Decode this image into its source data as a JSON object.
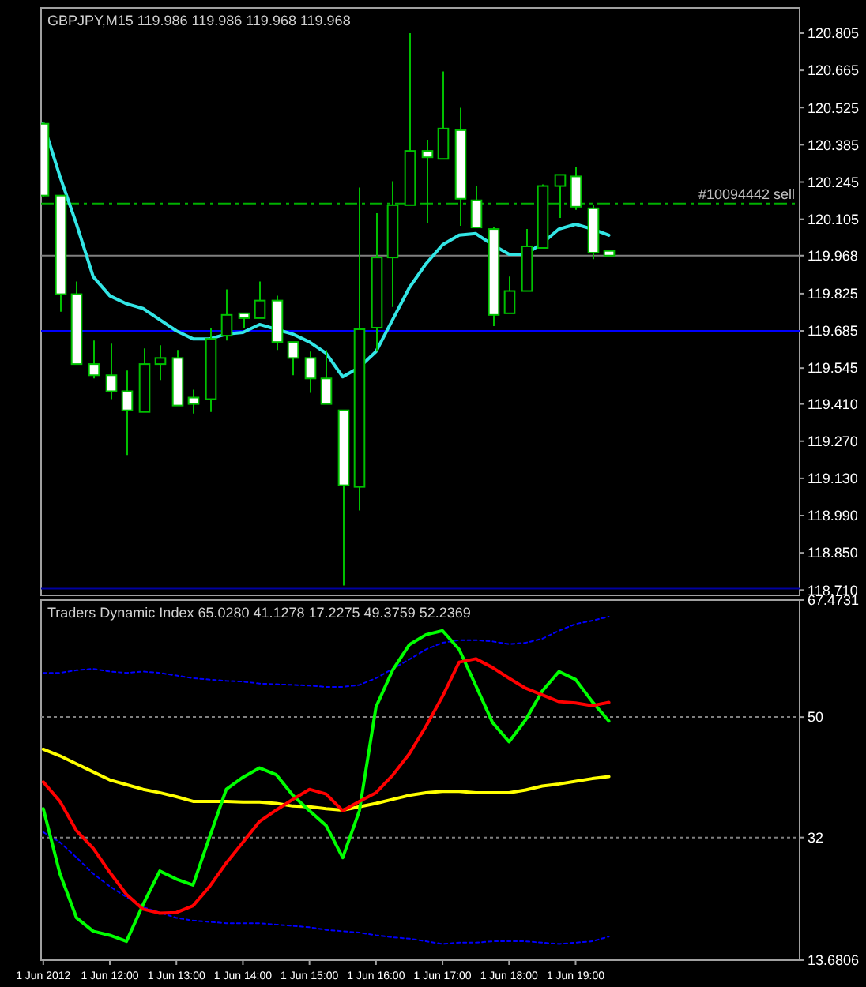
{
  "chart_data": [
    {
      "type": "candlestick",
      "title": "GBPJPY,M15  119.986 119.986 119.968 119.968",
      "x": [
        "2012-06-01T11:00",
        "2012-06-01T11:15",
        "2012-06-01T11:30",
        "2012-06-01T11:45",
        "2012-06-01T12:00",
        "2012-06-01T12:15",
        "2012-06-01T12:30",
        "2012-06-01T12:45",
        "2012-06-01T13:00",
        "2012-06-01T13:15",
        "2012-06-01T13:30",
        "2012-06-01T13:45",
        "2012-06-01T14:00",
        "2012-06-01T14:15",
        "2012-06-01T14:30",
        "2012-06-01T14:45",
        "2012-06-01T15:00",
        "2012-06-01T15:15",
        "2012-06-01T15:30",
        "2012-06-01T15:45",
        "2012-06-01T16:00",
        "2012-06-01T16:15",
        "2012-06-01T16:30",
        "2012-06-01T16:45",
        "2012-06-01T17:00",
        "2012-06-01T17:15",
        "2012-06-01T17:30",
        "2012-06-01T17:45",
        "2012-06-01T18:00",
        "2012-06-01T18:15",
        "2012-06-01T18:30",
        "2012-06-01T18:45",
        "2012-06-01T19:00",
        "2012-06-01T19:15",
        "2012-06-01T19:30"
      ],
      "ohlc": [
        [
          120.464,
          120.47,
          120.19,
          120.194
        ],
        [
          120.194,
          120.194,
          119.757,
          119.823
        ],
        [
          119.823,
          119.871,
          119.56,
          119.56
        ],
        [
          119.56,
          119.649,
          119.506,
          119.518
        ],
        [
          119.518,
          119.637,
          119.428,
          119.458
        ],
        [
          119.458,
          119.536,
          119.218,
          119.386
        ],
        [
          119.38,
          119.619,
          119.38,
          119.56
        ],
        [
          119.56,
          119.631,
          119.5,
          119.583
        ],
        [
          119.583,
          119.613,
          119.404,
          119.404
        ],
        [
          119.434,
          119.464,
          119.374,
          119.41
        ],
        [
          119.428,
          119.697,
          119.38,
          119.655
        ],
        [
          119.667,
          119.841,
          119.649,
          119.745
        ],
        [
          119.751,
          119.751,
          119.697,
          119.733
        ],
        [
          119.733,
          119.871,
          119.733,
          119.799
        ],
        [
          119.799,
          119.817,
          119.613,
          119.643
        ],
        [
          119.643,
          119.643,
          119.518,
          119.583
        ],
        [
          119.583,
          119.607,
          119.452,
          119.506
        ],
        [
          119.506,
          119.613,
          119.41,
          119.41
        ],
        [
          119.386,
          119.386,
          118.727,
          119.104
        ],
        [
          119.098,
          120.224,
          119.009,
          119.691
        ],
        [
          119.697,
          120.128,
          119.607,
          119.961
        ],
        [
          119.961,
          120.248,
          119.775,
          120.158
        ],
        [
          120.158,
          120.805,
          120.158,
          120.362
        ],
        [
          120.362,
          120.404,
          120.092,
          120.338
        ],
        [
          120.332,
          120.661,
          120.332,
          120.446
        ],
        [
          120.44,
          120.524,
          120.08,
          120.182
        ],
        [
          120.176,
          120.23,
          120.074,
          120.074
        ],
        [
          120.068,
          120.074,
          119.703,
          119.745
        ],
        [
          119.751,
          119.889,
          119.751,
          119.835
        ],
        [
          119.835,
          120.068,
          119.835,
          120.003
        ],
        [
          119.997,
          120.236,
          119.997,
          120.23
        ],
        [
          120.23,
          120.272,
          120.11,
          120.272
        ],
        [
          120.266,
          120.302,
          120.14,
          120.152
        ],
        [
          120.146,
          120.158,
          119.955,
          119.979
        ],
        [
          119.986,
          119.986,
          119.968,
          119.968
        ]
      ],
      "series": [
        {
          "type": "line",
          "color": "#33e6e6",
          "values": [
            120.464,
            120.266,
            120.086,
            119.889,
            119.817,
            119.787,
            119.769,
            119.727,
            119.685,
            119.655,
            119.655,
            119.673,
            119.679,
            119.709,
            119.691,
            119.673,
            119.643,
            119.601,
            119.512,
            119.548,
            119.607,
            119.727,
            119.847,
            119.937,
            120.009,
            120.045,
            120.051,
            120.009,
            119.973,
            119.973,
            120.015,
            120.068,
            120.086,
            120.068,
            120.045
          ]
        }
      ],
      "ref_lines": [
        {
          "axis": "y",
          "value": 120.164,
          "label": "#10094442 sell",
          "color": "#00b000",
          "line_style": "dashed"
        },
        {
          "axis": "y",
          "value": 119.968,
          "color": "#808080"
        },
        {
          "axis": "y",
          "value": 119.685,
          "color": "#0000ff"
        },
        {
          "axis": "y",
          "value": 118.715,
          "color": "#0000a0"
        }
      ],
      "xlim": [
        "2012-06-01T10:58",
        "2012-06-01T22:22"
      ],
      "ylim": [
        118.69,
        120.9
      ],
      "yticks": [
        120.805,
        120.665,
        120.525,
        120.385,
        120.245,
        120.105,
        119.968,
        119.825,
        119.685,
        119.545,
        {
          "value": 119.41,
          "label": "119.410"
        },
        {
          "value": 119.27,
          "label": "119.270"
        },
        {
          "value": 119.13,
          "label": "119.130"
        },
        {
          "value": 118.99,
          "label": "118.990"
        },
        {
          "value": 118.85,
          "label": "118.850"
        },
        {
          "value": 118.71,
          "label": "118.710"
        }
      ],
      "tick_labels": "y"
    },
    {
      "type": "line",
      "title": "Traders Dynamic Index 65.0280 41.1278 17.2275 49.3759 52.2369",
      "x": [
        "2012-06-01T11:00",
        "2012-06-01T11:15",
        "2012-06-01T11:30",
        "2012-06-01T11:45",
        "2012-06-01T12:00",
        "2012-06-01T12:15",
        "2012-06-01T12:30",
        "2012-06-01T12:45",
        "2012-06-01T13:00",
        "2012-06-01T13:15",
        "2012-06-01T13:30",
        "2012-06-01T13:45",
        "2012-06-01T14:00",
        "2012-06-01T14:15",
        "2012-06-01T14:30",
        "2012-06-01T14:45",
        "2012-06-01T15:00",
        "2012-06-01T15:15",
        "2012-06-01T15:30",
        "2012-06-01T15:45",
        "2012-06-01T16:00",
        "2012-06-01T16:15",
        "2012-06-01T16:30",
        "2012-06-01T16:45",
        "2012-06-01T17:00",
        "2012-06-01T17:15",
        "2012-06-01T17:30",
        "2012-06-01T17:45",
        "2012-06-01T18:00",
        "2012-06-01T18:15",
        "2012-06-01T18:30",
        "2012-06-01T18:45",
        "2012-06-01T19:00",
        "2012-06-01T19:15",
        "2012-06-01T19:30"
      ],
      "series": [
        {
          "color": "#0000ff",
          "line_style": "dotted",
          "values": [
            56.6,
            56.6,
            57.0,
            57.2,
            56.8,
            56.6,
            56.8,
            56.6,
            56.2,
            55.8,
            55.6,
            55.4,
            55.3,
            55.0,
            54.9,
            54.8,
            54.7,
            54.5,
            54.5,
            54.8,
            55.8,
            57.2,
            58.6,
            60.1,
            61.1,
            61.5,
            61.5,
            61.3,
            60.9,
            61.1,
            61.7,
            62.9,
            63.9,
            64.4,
            65.0
          ]
        },
        {
          "color": "#0000ff",
          "line_style": "dotted",
          "values": [
            32.8,
            31.3,
            29.0,
            26.6,
            24.7,
            23.1,
            21.6,
            20.8,
            20.0,
            19.6,
            19.4,
            19.2,
            19.2,
            19.2,
            19.0,
            18.8,
            18.6,
            18.2,
            18.0,
            17.8,
            17.4,
            17.1,
            16.9,
            16.5,
            16.1,
            16.3,
            16.3,
            16.5,
            16.5,
            16.5,
            16.3,
            16.1,
            16.3,
            16.5,
            17.2
          ]
        },
        {
          "color": "#ffff00",
          "line_style": "solid",
          "values": [
            45.2,
            44.2,
            43.0,
            41.8,
            40.6,
            39.9,
            39.2,
            38.7,
            38.1,
            37.4,
            37.4,
            37.4,
            37.3,
            37.3,
            37.1,
            36.7,
            36.6,
            36.3,
            36.1,
            36.6,
            37.1,
            37.7,
            38.3,
            38.7,
            38.9,
            38.9,
            38.7,
            38.7,
            38.7,
            39.1,
            39.7,
            40.0,
            40.4,
            40.8,
            41.1
          ]
        },
        {
          "color": "#00ff00",
          "line_style": "solid",
          "values": [
            36.3,
            26.6,
            20.0,
            18.0,
            17.4,
            16.5,
            22.0,
            27.0,
            25.8,
            24.9,
            32.1,
            39.2,
            41.0,
            42.4,
            41.4,
            38.3,
            36.0,
            33.8,
            29.0,
            36.0,
            51.5,
            57.0,
            60.8,
            62.3,
            62.9,
            60.1,
            54.7,
            49.2,
            46.3,
            49.6,
            53.9,
            56.8,
            55.6,
            52.3,
            49.4
          ]
        },
        {
          "color": "#ff0000",
          "line_style": "solid",
          "values": [
            40.3,
            37.4,
            33.0,
            30.4,
            26.8,
            23.5,
            21.3,
            20.7,
            20.8,
            21.8,
            24.7,
            28.2,
            31.3,
            34.4,
            36.1,
            37.7,
            39.2,
            38.5,
            36.0,
            37.4,
            38.7,
            41.3,
            44.5,
            48.6,
            53.1,
            58.2,
            58.7,
            57.4,
            55.8,
            54.3,
            53.3,
            52.3,
            52.1,
            51.7,
            52.2
          ]
        }
      ],
      "ref_lines": [
        {
          "axis": "y",
          "value": 50,
          "color": "#808080",
          "line_style": "dotted"
        },
        {
          "axis": "y",
          "value": 32,
          "color": "#808080",
          "line_style": "dotted"
        }
      ],
      "xlim": [
        "2012-06-01T10:58",
        "2012-06-01T22:22"
      ],
      "ylim": [
        13.6806,
        67.4731
      ],
      "xticks": [
        {
          "value": "2012-06-01T11:00",
          "label": "1 Jun 2012"
        },
        {
          "value": "2012-06-01T12:00",
          "label": "1 Jun 12:00"
        },
        {
          "value": "2012-06-01T13:00",
          "label": "1 Jun 13:00"
        },
        {
          "value": "2012-06-01T14:00",
          "label": "1 Jun 14:00"
        },
        {
          "value": "2012-06-01T15:00",
          "label": "1 Jun 15:00"
        },
        {
          "value": "2012-06-01T16:00",
          "label": "1 Jun 16:00"
        },
        {
          "value": "2012-06-01T17:00",
          "label": "1 Jun 17:00"
        },
        {
          "value": "2012-06-01T18:00",
          "label": "1 Jun 18:00"
        },
        {
          "value": "2012-06-01T19:00",
          "label": "1 Jun 19:00"
        }
      ],
      "yticks": [
        67.4731,
        50,
        32,
        13.6806
      ]
    }
  ]
}
